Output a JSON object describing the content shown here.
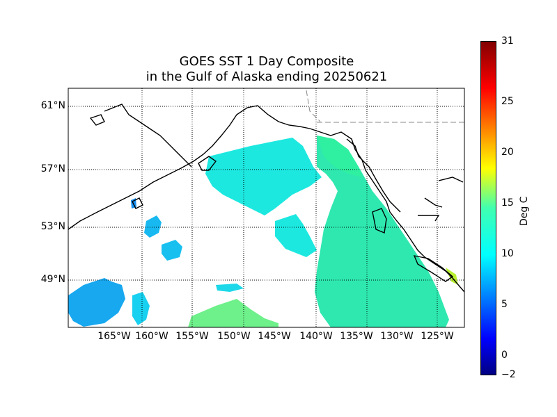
{
  "title": {
    "line1": "GOES SST 1 Day Composite",
    "line2": "in the Gulf of Alaska ending 20250621"
  },
  "map": {
    "lat_labels": [
      "61°N",
      "57°N",
      "53°N",
      "49°N"
    ],
    "lon_labels": [
      "165°W",
      "160°W",
      "155°W",
      "150°W",
      "145°W",
      "140°W",
      "135°W",
      "130°W",
      "125°W"
    ]
  },
  "colorbar": {
    "label": "Deg C",
    "ticks": [
      "31",
      "25",
      "20",
      "15",
      "10",
      "5",
      "0",
      "−2"
    ],
    "min": -2,
    "max": 31,
    "colormap": "jet"
  },
  "colors": {
    "land_outline": "#000000",
    "border": "#888888",
    "grid": "#000000"
  }
}
